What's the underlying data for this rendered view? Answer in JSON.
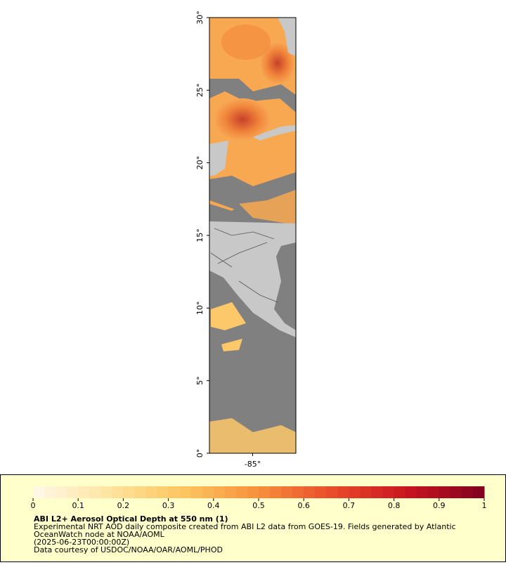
{
  "map": {
    "xlim": [
      -88,
      -82
    ],
    "ylim": [
      0,
      30
    ],
    "yticks": [
      {
        "value": 0,
        "label": "0°"
      },
      {
        "value": 5,
        "label": "5°"
      },
      {
        "value": 10,
        "label": "10°"
      },
      {
        "value": 15,
        "label": "15°"
      },
      {
        "value": 20,
        "label": "20°"
      },
      {
        "value": 25,
        "label": "25°"
      },
      {
        "value": 30,
        "label": "30°"
      }
    ],
    "xticks": [
      {
        "value": -85,
        "label": "-85°"
      }
    ]
  },
  "colorbar": {
    "lim": [
      0,
      1
    ],
    "ticks": [
      0,
      0.1,
      0.2,
      0.3,
      0.4,
      0.5,
      0.6,
      0.7,
      0.8,
      0.9,
      1
    ],
    "colors": [
      "#fff8e8",
      "#ffe4a0",
      "#fdc560",
      "#f7903c",
      "#e84a2a",
      "#c81420",
      "#800020"
    ]
  },
  "caption": {
    "title": "ABI L2+ Aerosol Optical Depth at 550 nm (1)",
    "lines": [
      "Experimental NRT AOD daily composite created from ABI L2 data from GOES-19. Fields generated by Atlantic",
      "OceanWatch node at NOAA/AOML",
      "(2025-06-23T00:00:00Z)",
      "Data courtesy of USDOC/NOAA/OAR/AOML/PHOD"
    ]
  }
}
